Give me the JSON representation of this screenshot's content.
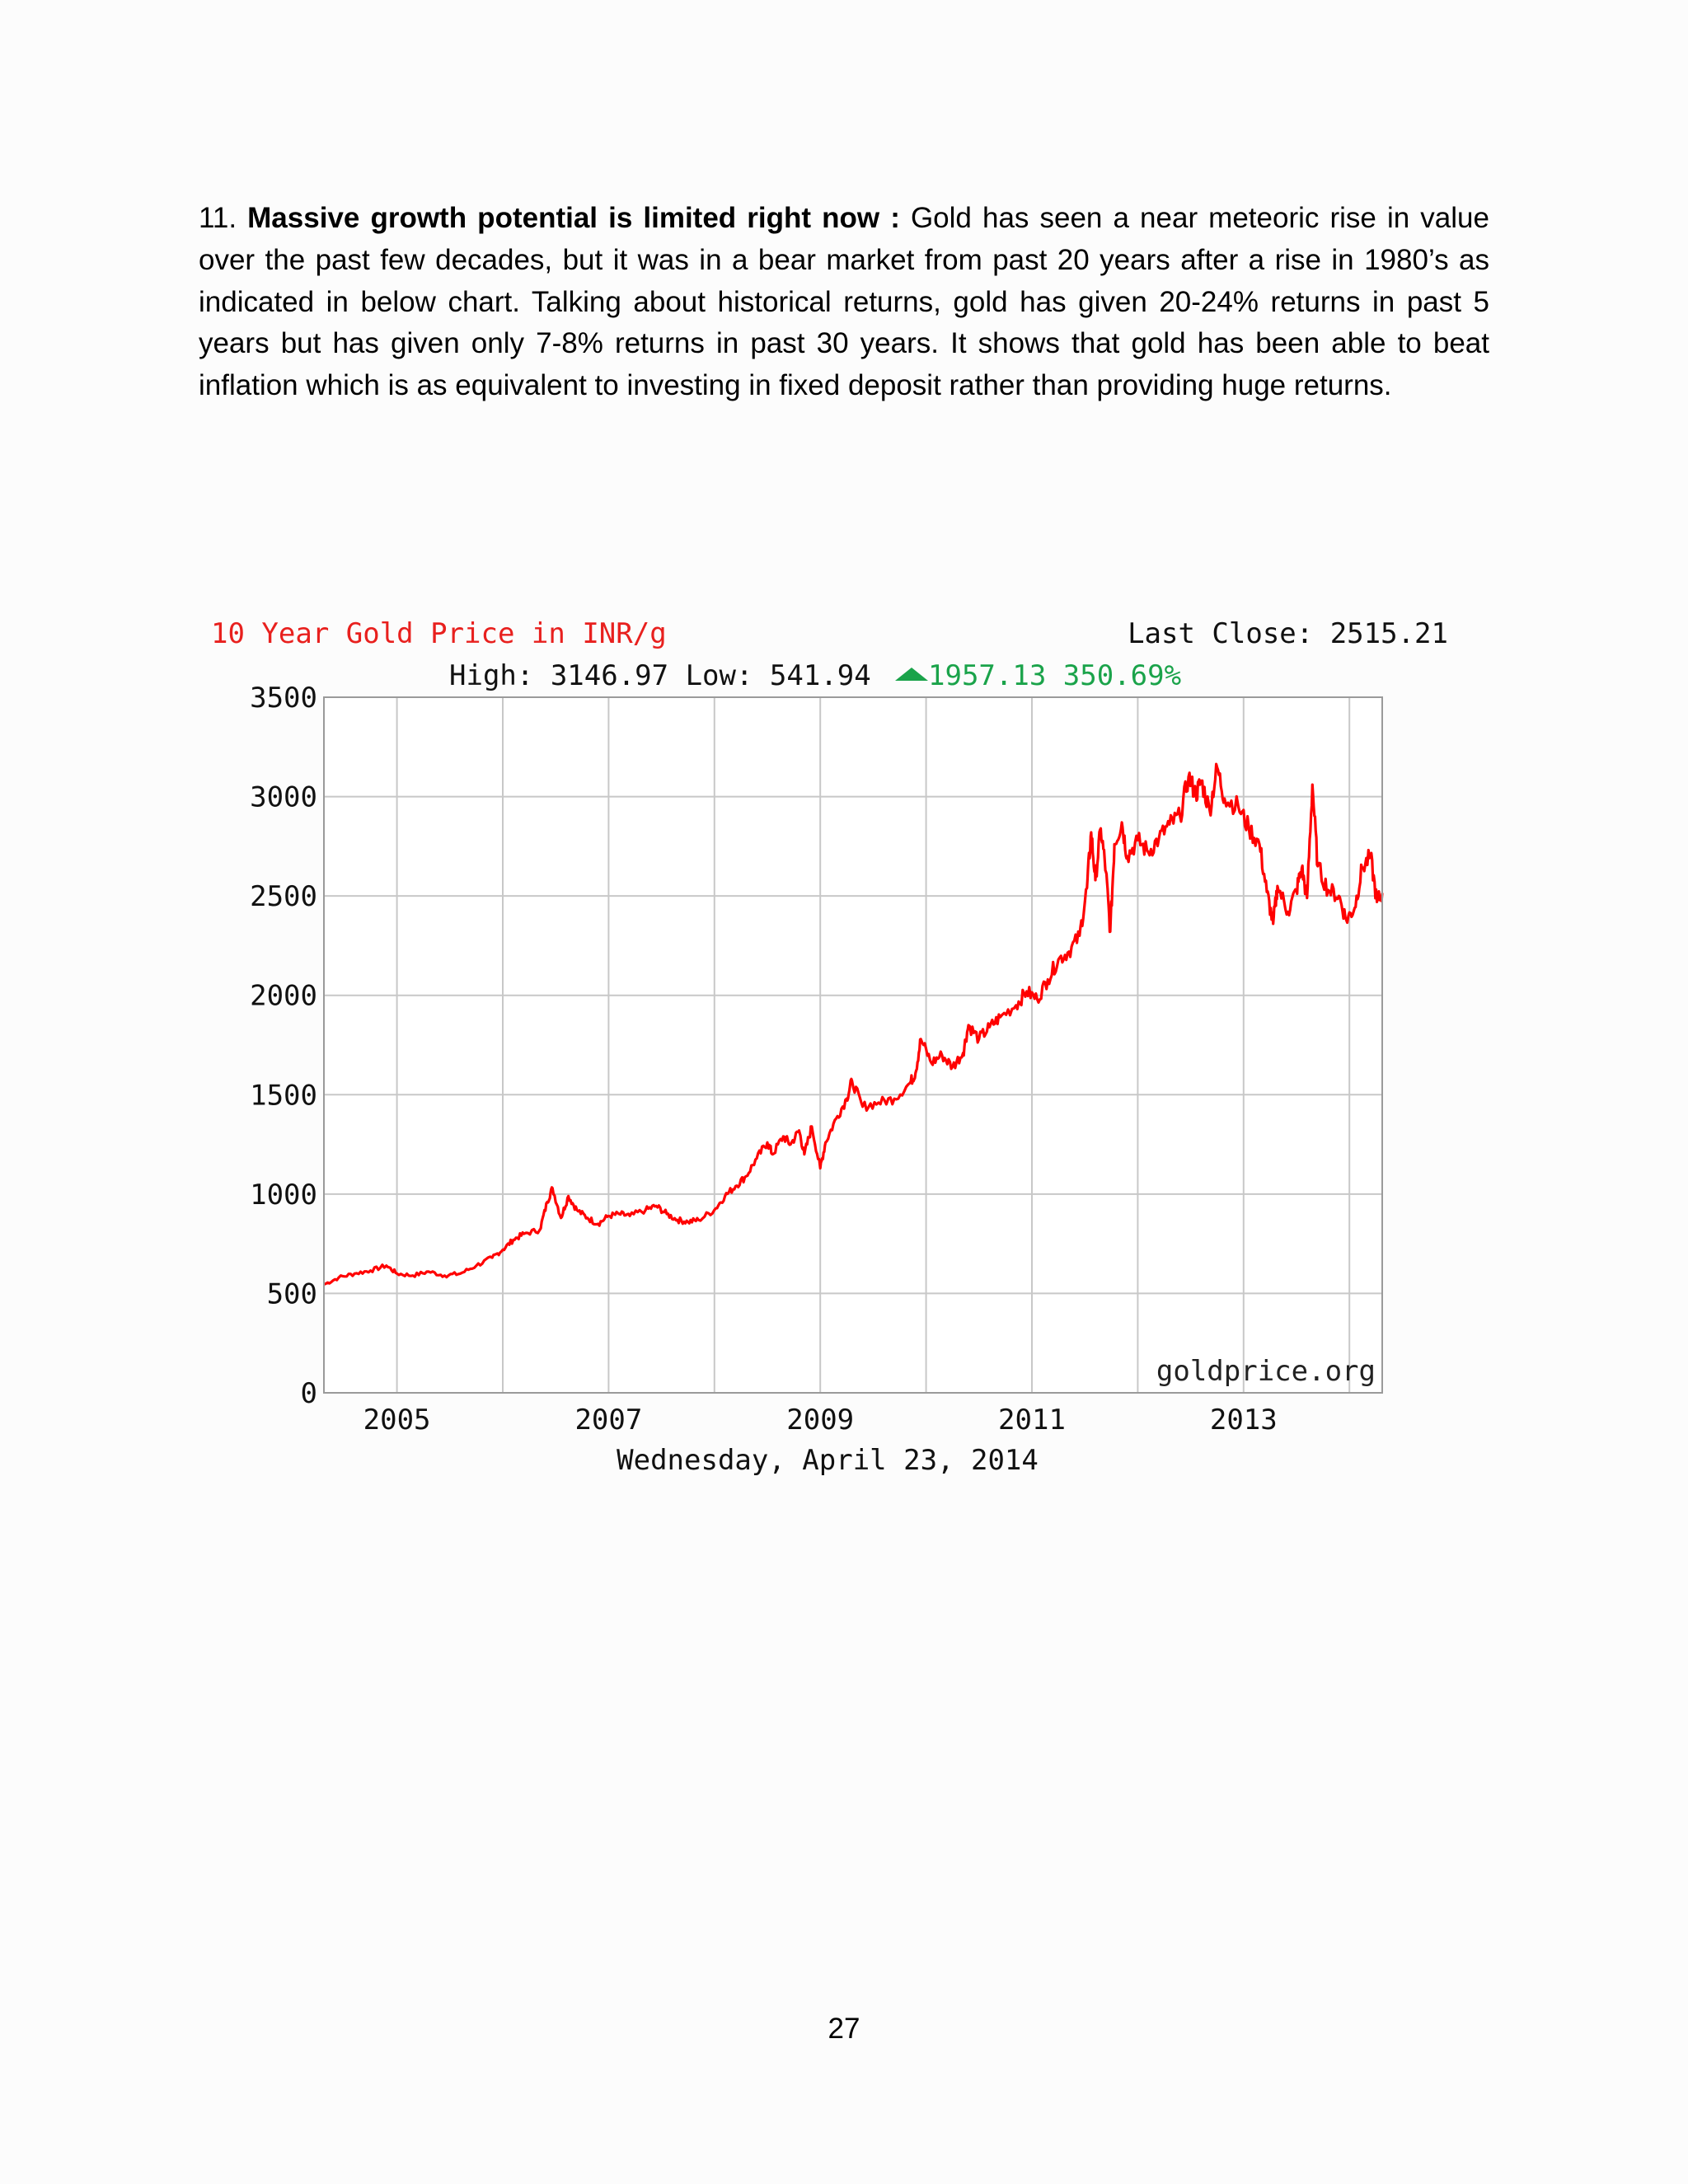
{
  "paragraph": {
    "number": "11.",
    "lead": "Massive growth potential is limited right now :",
    "body": "Gold has seen a near meteoric rise in value over the past few decades, but it was in a bear market from past 20 years after a rise in 1980’s as indicated in below chart. Talking about historical returns, gold has given 20-24% returns in past 5 years but has given only 7-8% returns in past 30 years. It shows that gold has been able to beat inflation which is as equivalent to investing in fixed deposit rather than providing huge returns."
  },
  "chart_data": {
    "type": "line",
    "title": "10 Year Gold Price in INR/g",
    "last_close": "Last Close: 2515.21",
    "stats_prefix": "High: 3146.97 Low: 541.94",
    "change_text": "1957.13 350.69%",
    "watermark": "goldprice.org",
    "xlabel": "Wednesday, April 23, 2014",
    "ylabel": "",
    "colors": {
      "title": "#e8201e",
      "line": "#ff0000",
      "change": "#1aa34a",
      "grid": "#c8c8c8"
    },
    "xlim": [
      2004.31,
      2014.31
    ],
    "ylim": [
      0,
      3500
    ],
    "x_ticks": [
      2005,
      2007,
      2009,
      2011,
      2013
    ],
    "x_tick_labels": [
      "2005",
      "2007",
      "2009",
      "2011",
      "2013"
    ],
    "y_ticks": [
      0,
      500,
      1000,
      1500,
      2000,
      2500,
      3000,
      3500
    ],
    "y_tick_labels": [
      "0",
      "500",
      "1000",
      "1500",
      "2000",
      "2500",
      "3000",
      "3500"
    ],
    "series": [
      {
        "values": [
          [
            2004.31,
            545
          ],
          [
            2004.45,
            580
          ],
          [
            2004.6,
            600
          ],
          [
            2004.75,
            615
          ],
          [
            2004.9,
            640
          ],
          [
            2005.0,
            600
          ],
          [
            2005.15,
            590
          ],
          [
            2005.3,
            610
          ],
          [
            2005.45,
            590
          ],
          [
            2005.6,
            600
          ],
          [
            2005.75,
            640
          ],
          [
            2005.9,
            680
          ],
          [
            2006.0,
            720
          ],
          [
            2006.1,
            770
          ],
          [
            2006.2,
            800
          ],
          [
            2006.35,
            820
          ],
          [
            2006.42,
            960
          ],
          [
            2006.47,
            1030
          ],
          [
            2006.55,
            880
          ],
          [
            2006.62,
            990
          ],
          [
            2006.7,
            920
          ],
          [
            2006.8,
            880
          ],
          [
            2006.9,
            850
          ],
          [
            2007.0,
            890
          ],
          [
            2007.1,
            900
          ],
          [
            2007.2,
            890
          ],
          [
            2007.35,
            920
          ],
          [
            2007.45,
            940
          ],
          [
            2007.55,
            900
          ],
          [
            2007.65,
            870
          ],
          [
            2007.75,
            860
          ],
          [
            2007.85,
            870
          ],
          [
            2008.0,
            920
          ],
          [
            2008.1,
            990
          ],
          [
            2008.2,
            1040
          ],
          [
            2008.3,
            1090
          ],
          [
            2008.4,
            1180
          ],
          [
            2008.5,
            1260
          ],
          [
            2008.55,
            1200
          ],
          [
            2008.65,
            1290
          ],
          [
            2008.72,
            1250
          ],
          [
            2008.8,
            1320
          ],
          [
            2008.85,
            1200
          ],
          [
            2008.92,
            1340
          ],
          [
            2009.0,
            1130
          ],
          [
            2009.05,
            1260
          ],
          [
            2009.15,
            1380
          ],
          [
            2009.25,
            1480
          ],
          [
            2009.3,
            1570
          ],
          [
            2009.4,
            1440
          ],
          [
            2009.55,
            1460
          ],
          [
            2009.7,
            1480
          ],
          [
            2009.85,
            1560
          ],
          [
            2009.9,
            1610
          ],
          [
            2009.95,
            1780
          ],
          [
            2010.05,
            1660
          ],
          [
            2010.15,
            1700
          ],
          [
            2010.25,
            1640
          ],
          [
            2010.35,
            1710
          ],
          [
            2010.4,
            1850
          ],
          [
            2010.5,
            1780
          ],
          [
            2010.6,
            1840
          ],
          [
            2010.7,
            1890
          ],
          [
            2010.85,
            1950
          ],
          [
            2010.95,
            2020
          ],
          [
            2011.05,
            1980
          ],
          [
            2011.15,
            2080
          ],
          [
            2011.25,
            2180
          ],
          [
            2011.35,
            2220
          ],
          [
            2011.45,
            2300
          ],
          [
            2011.52,
            2540
          ],
          [
            2011.56,
            2820
          ],
          [
            2011.6,
            2580
          ],
          [
            2011.65,
            2840
          ],
          [
            2011.7,
            2620
          ],
          [
            2011.74,
            2320
          ],
          [
            2011.78,
            2760
          ],
          [
            2011.85,
            2870
          ],
          [
            2011.9,
            2700
          ],
          [
            2012.0,
            2780
          ],
          [
            2012.1,
            2720
          ],
          [
            2012.2,
            2790
          ],
          [
            2012.3,
            2860
          ],
          [
            2012.4,
            2900
          ],
          [
            2012.48,
            3100
          ],
          [
            2012.55,
            3010
          ],
          [
            2012.6,
            3080
          ],
          [
            2012.68,
            2930
          ],
          [
            2012.75,
            3146.97
          ],
          [
            2012.82,
            2990
          ],
          [
            2012.95,
            2950
          ],
          [
            2013.05,
            2840
          ],
          [
            2013.15,
            2760
          ],
          [
            2013.22,
            2520
          ],
          [
            2013.28,
            2360
          ],
          [
            2013.32,
            2550
          ],
          [
            2013.42,
            2420
          ],
          [
            2013.5,
            2530
          ],
          [
            2013.55,
            2640
          ],
          [
            2013.6,
            2490
          ],
          [
            2013.65,
            3060
          ],
          [
            2013.7,
            2650
          ],
          [
            2013.8,
            2530
          ],
          [
            2013.9,
            2500
          ],
          [
            2013.97,
            2380
          ],
          [
            2014.05,
            2440
          ],
          [
            2014.12,
            2640
          ],
          [
            2014.2,
            2700
          ],
          [
            2014.26,
            2470
          ],
          [
            2014.31,
            2515.21
          ]
        ]
      }
    ]
  },
  "footer": {
    "page_number": "27"
  }
}
